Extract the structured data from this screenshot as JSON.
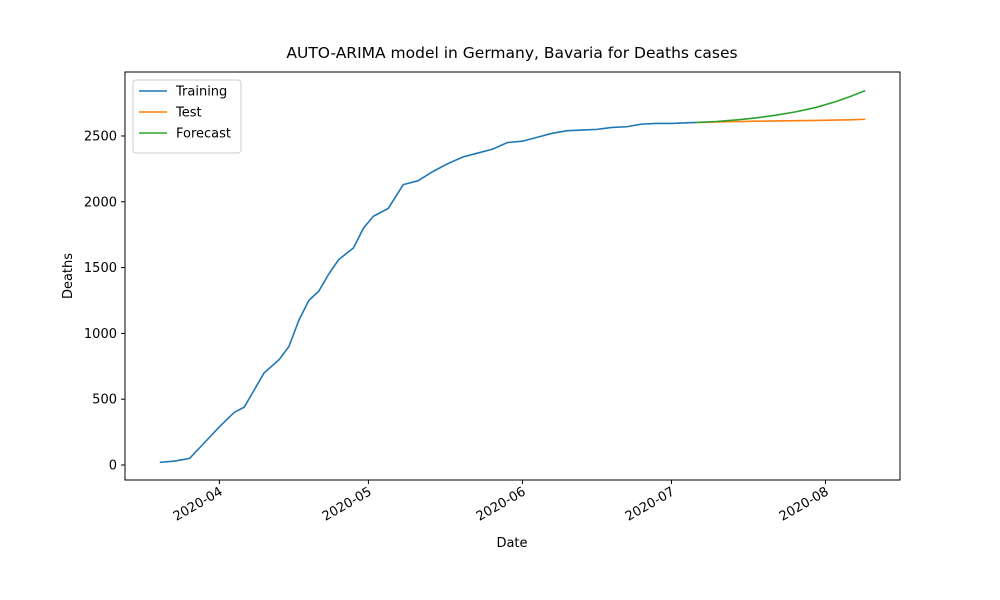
{
  "chart_data": {
    "type": "line",
    "title": "AUTO-ARIMA model in Germany, Bavaria for Deaths cases",
    "x_label": "Date",
    "y_label": "Deaths",
    "xlim": [
      "2020-03-13",
      "2020-08-16"
    ],
    "xticks": [
      {
        "value": "2020-04-01",
        "label": "2020-04"
      },
      {
        "value": "2020-05-01",
        "label": "2020-05"
      },
      {
        "value": "2020-06-01",
        "label": "2020-06"
      },
      {
        "value": "2020-07-01",
        "label": "2020-07"
      },
      {
        "value": "2020-08-01",
        "label": "2020-08"
      }
    ],
    "ylim": [
      -114,
      2986
    ],
    "yticks": [
      0,
      500,
      1000,
      1500,
      2000,
      2500
    ],
    "legend": "upper left",
    "series": [
      {
        "name": "Training",
        "color": "#1f77b4",
        "x": [
          "2020-03-20",
          "2020-03-23",
          "2020-03-26",
          "2020-03-29",
          "2020-04-01",
          "2020-04-04",
          "2020-04-06",
          "2020-04-08",
          "2020-04-10",
          "2020-04-13",
          "2020-04-15",
          "2020-04-17",
          "2020-04-19",
          "2020-04-21",
          "2020-04-23",
          "2020-04-25",
          "2020-04-28",
          "2020-04-30",
          "2020-05-02",
          "2020-05-05",
          "2020-05-08",
          "2020-05-11",
          "2020-05-14",
          "2020-05-17",
          "2020-05-20",
          "2020-05-23",
          "2020-05-26",
          "2020-05-29",
          "2020-06-01",
          "2020-06-04",
          "2020-06-07",
          "2020-06-10",
          "2020-06-13",
          "2020-06-16",
          "2020-06-19",
          "2020-06-22",
          "2020-06-25",
          "2020-06-28",
          "2020-07-01",
          "2020-07-04",
          "2020-07-06"
        ],
        "values": [
          20,
          30,
          50,
          170,
          290,
          400,
          440,
          570,
          700,
          800,
          900,
          1100,
          1250,
          1320,
          1450,
          1560,
          1650,
          1800,
          1890,
          1950,
          2130,
          2160,
          2230,
          2290,
          2340,
          2370,
          2400,
          2450,
          2460,
          2490,
          2520,
          2540,
          2545,
          2550,
          2565,
          2570,
          2590,
          2595,
          2595,
          2600,
          2603
        ]
      },
      {
        "name": "Test",
        "color": "#ff7f0e",
        "x": [
          "2020-07-06",
          "2020-07-10",
          "2020-07-14",
          "2020-07-18",
          "2020-07-22",
          "2020-07-26",
          "2020-07-30",
          "2020-08-03",
          "2020-08-06",
          "2020-08-09"
        ],
        "values": [
          2603,
          2606,
          2609,
          2612,
          2614,
          2616,
          2618,
          2621,
          2623,
          2627
        ]
      },
      {
        "name": "Forecast",
        "color": "#2ca02c",
        "x": [
          "2020-07-06",
          "2020-07-10",
          "2020-07-14",
          "2020-07-18",
          "2020-07-22",
          "2020-07-26",
          "2020-07-30",
          "2020-08-03",
          "2020-08-06",
          "2020-08-09"
        ],
        "values": [
          2603,
          2610,
          2622,
          2637,
          2658,
          2683,
          2716,
          2760,
          2800,
          2845
        ]
      }
    ]
  }
}
